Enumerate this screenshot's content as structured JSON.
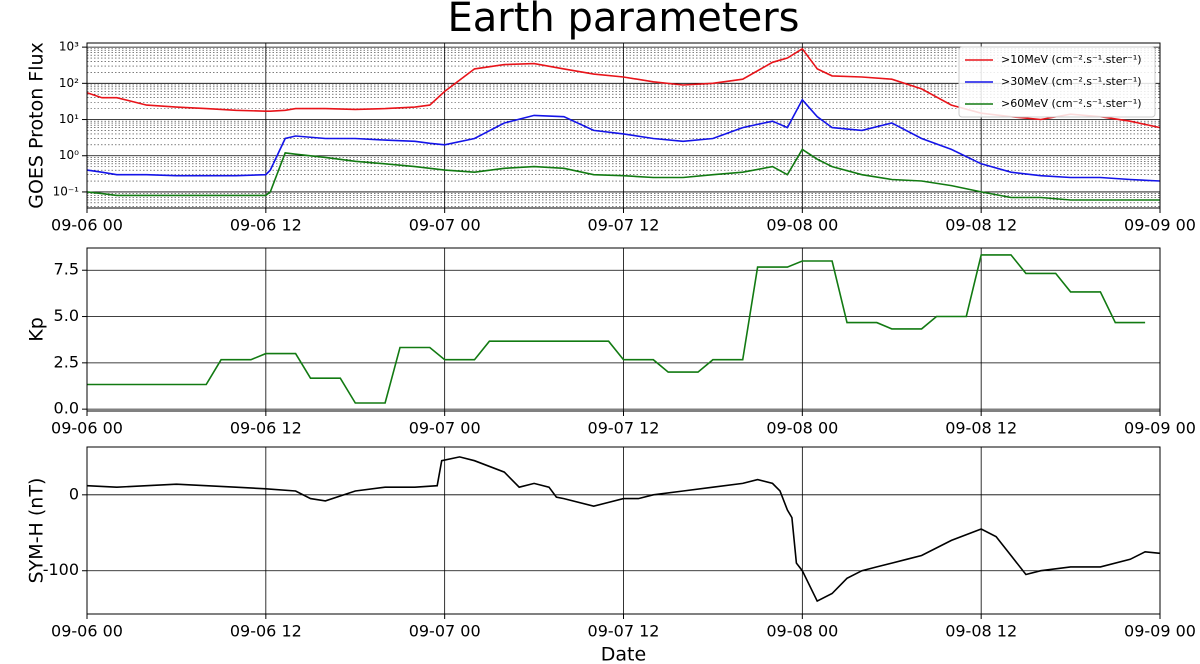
{
  "chart_data": [
    {
      "type": "line",
      "title": "Earth parameters",
      "ylabel": "GOES Proton Flux",
      "yscale": "log",
      "grid": true,
      "legend": "upper right",
      "xlim": [
        0,
        72
      ],
      "xticks": [
        {
          "value": 0,
          "label": "09-06 00"
        },
        {
          "value": 12,
          "label": "09-06 12"
        },
        {
          "value": 24,
          "label": "09-07 00"
        },
        {
          "value": 36,
          "label": "09-07 12"
        },
        {
          "value": 48,
          "label": "09-08 00"
        },
        {
          "value": 60,
          "label": "09-08 12"
        },
        {
          "value": 72,
          "label": "09-09 00"
        }
      ],
      "ylim": [
        0.036,
        1300
      ],
      "yticks": [
        {
          "value": 0.1,
          "label": "10⁻¹"
        },
        {
          "value": 1,
          "label": "10⁰"
        },
        {
          "value": 10,
          "label": "10¹"
        },
        {
          "value": 100,
          "label": "10²"
        },
        {
          "value": 1000,
          "label": "10³"
        }
      ],
      "yticks_minor": [
        0.04,
        0.05,
        0.06,
        0.07,
        0.08,
        0.09,
        0.2,
        0.3,
        0.4,
        0.5,
        0.6,
        0.7,
        0.8,
        0.9,
        2,
        3,
        4,
        5,
        6,
        7,
        8,
        9,
        20,
        30,
        40,
        50,
        60,
        70,
        80,
        90,
        200,
        300,
        400,
        500,
        600,
        700,
        800,
        900
      ],
      "x": [
        0,
        1,
        2,
        4,
        6,
        8,
        10,
        12,
        12.3,
        13.3,
        14,
        16,
        18,
        20,
        22,
        23,
        24,
        26,
        28,
        30,
        32,
        34,
        36,
        38,
        40,
        42,
        44,
        46,
        47,
        48,
        49,
        50,
        52,
        54,
        56,
        58,
        60,
        62,
        64,
        66,
        68,
        70,
        72
      ],
      "series": [
        {
          "name": ">10MeV (cm⁻².s⁻¹.ster⁻¹)",
          "color": "#e8141a",
          "values": [
            55,
            40,
            40,
            25,
            22,
            20,
            18,
            17,
            17,
            18,
            20,
            20,
            19,
            20,
            22,
            25,
            60,
            250,
            330,
            350,
            250,
            180,
            150,
            110,
            90,
            100,
            130,
            380,
            500,
            900,
            250,
            160,
            150,
            130,
            70,
            25,
            15,
            12,
            10,
            14,
            12,
            9,
            6
          ]
        },
        {
          "name": ">30MeV (cm⁻².s⁻¹.ster⁻¹)",
          "color": "#1414e8",
          "values": [
            0.4,
            0.35,
            0.3,
            0.3,
            0.28,
            0.28,
            0.28,
            0.3,
            0.4,
            3,
            3.5,
            3,
            3,
            2.7,
            2.5,
            2.2,
            2,
            3,
            8,
            13,
            12,
            5,
            4,
            3,
            2.5,
            3,
            6,
            9,
            6,
            35,
            12,
            6,
            5,
            8,
            3,
            1.5,
            0.6,
            0.35,
            0.28,
            0.25,
            0.25,
            0.22,
            0.2
          ]
        },
        {
          "name": ">60MeV (cm⁻².s⁻¹.ster⁻¹)",
          "color": "#127a12",
          "values": [
            0.1,
            0.09,
            0.08,
            0.08,
            0.08,
            0.08,
            0.08,
            0.08,
            0.1,
            1.2,
            1.1,
            0.9,
            0.7,
            0.6,
            0.5,
            0.45,
            0.4,
            0.35,
            0.45,
            0.5,
            0.45,
            0.3,
            0.28,
            0.25,
            0.25,
            0.3,
            0.35,
            0.5,
            0.3,
            1.5,
            0.8,
            0.5,
            0.3,
            0.22,
            0.2,
            0.15,
            0.1,
            0.07,
            0.07,
            0.06,
            0.06,
            0.06,
            0.06
          ]
        }
      ]
    },
    {
      "type": "line",
      "ylabel": "Kp",
      "grid": true,
      "xlim": [
        0,
        72
      ],
      "xticks": [
        {
          "value": 0,
          "label": "09-06 00"
        },
        {
          "value": 12,
          "label": "09-06 12"
        },
        {
          "value": 24,
          "label": "09-07 00"
        },
        {
          "value": 36,
          "label": "09-07 12"
        },
        {
          "value": 48,
          "label": "09-08 00"
        },
        {
          "value": 60,
          "label": "09-08 12"
        },
        {
          "value": 72,
          "label": "09-09 00"
        }
      ],
      "ylim": [
        -0.1,
        8.7
      ],
      "yticks": [
        {
          "value": 0,
          "label": "0.0"
        },
        2.5,
        {
          "value": 5,
          "label": "5.0"
        },
        7.5
      ],
      "x": [
        0,
        8,
        9,
        11,
        12,
        14,
        15,
        17,
        18,
        20,
        21,
        23,
        24,
        26,
        27,
        35,
        36,
        38,
        39,
        41,
        42,
        44,
        45,
        47,
        48,
        50,
        51,
        53,
        54,
        56,
        57,
        59,
        60,
        62,
        63,
        65,
        66,
        68,
        69,
        71
      ],
      "series": [
        {
          "name": "Kp",
          "color": "#127a12",
          "values": [
            1.33,
            1.33,
            2.67,
            2.67,
            3,
            3,
            1.67,
            1.67,
            0.33,
            0.33,
            3.33,
            3.33,
            2.67,
            2.67,
            3.67,
            3.67,
            2.67,
            2.67,
            2,
            2,
            2.67,
            2.67,
            7.67,
            7.67,
            8,
            8,
            4.67,
            4.67,
            4.33,
            4.33,
            5,
            5,
            8.33,
            8.33,
            7.33,
            7.33,
            6.33,
            6.33,
            4.67,
            4.67
          ]
        }
      ]
    },
    {
      "type": "line",
      "ylabel": "SYM-H (nT)",
      "xlabel": "Date",
      "grid": true,
      "xlim": [
        0,
        72
      ],
      "xticks": [
        {
          "value": 0,
          "label": "09-06 00"
        },
        {
          "value": 12,
          "label": "09-06 12"
        },
        {
          "value": 24,
          "label": "09-07 00"
        },
        {
          "value": 36,
          "label": "09-07 12"
        },
        {
          "value": 48,
          "label": "09-08 00"
        },
        {
          "value": 60,
          "label": "09-08 12"
        },
        {
          "value": 72,
          "label": "09-09 00"
        }
      ],
      "ylim": [
        -157,
        63
      ],
      "yticks": [
        -100,
        0
      ],
      "x": [
        0,
        2,
        4,
        6,
        8,
        10,
        12,
        14,
        15,
        16,
        18,
        20,
        22,
        23.5,
        23.8,
        25,
        26,
        28,
        29,
        30,
        31,
        31.5,
        32,
        34,
        35,
        36,
        37,
        38,
        40,
        42,
        44,
        45,
        46,
        46.5,
        47,
        47.3,
        47.6,
        48,
        49,
        50,
        51,
        52,
        53,
        54,
        55,
        56,
        58,
        60,
        61,
        62,
        63,
        64,
        66,
        68,
        70,
        71,
        72
      ],
      "series": [
        {
          "name": "SYM-H",
          "color": "#000000",
          "values": [
            12,
            10,
            12,
            14,
            12,
            10,
            8,
            5,
            -5,
            -8,
            5,
            10,
            10,
            12,
            45,
            50,
            45,
            30,
            10,
            15,
            10,
            -3,
            -5,
            -15,
            -10,
            -5,
            -5,
            0,
            5,
            10,
            15,
            20,
            15,
            5,
            -20,
            -30,
            -90,
            -100,
            -140,
            -130,
            -110,
            -100,
            -95,
            -90,
            -85,
            -80,
            -60,
            -45,
            -55,
            -80,
            -105,
            -100,
            -95,
            -95,
            -85,
            -75,
            -77
          ]
        }
      ]
    }
  ]
}
